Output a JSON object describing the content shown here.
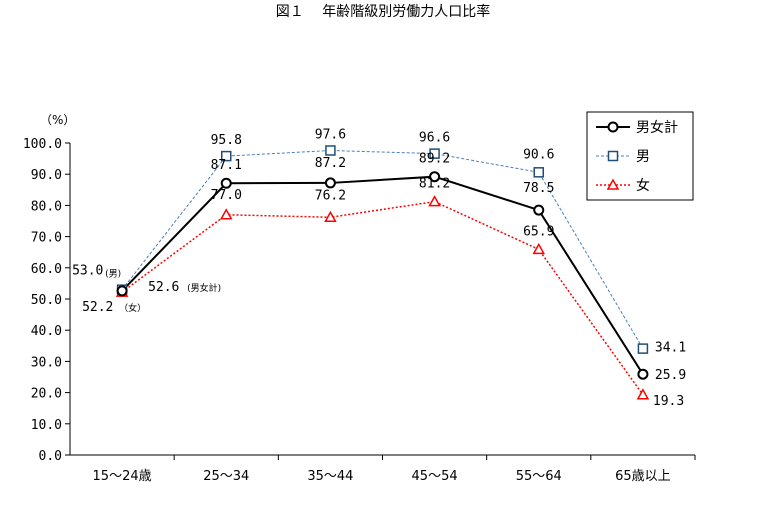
{
  "chart_data": {
    "type": "line",
    "title": "図１　 年齢階級別労働力人口比率",
    "unit_label": "（%）",
    "categories": [
      "15～24歳",
      "25～34",
      "35～44",
      "45～54",
      "55～64",
      "65歳以上"
    ],
    "ylim": [
      0,
      100
    ],
    "yticks": [
      "0.0",
      "10.0",
      "20.0",
      "30.0",
      "40.0",
      "50.0",
      "60.0",
      "70.0",
      "80.0",
      "90.0",
      "100.0"
    ],
    "grid": false,
    "legend_position": "top-right",
    "series": [
      {
        "name": "男女計",
        "values": [
          52.6,
          87.1,
          87.2,
          89.2,
          78.5,
          25.9
        ],
        "labels": [
          "52.6",
          "87.1",
          "87.2",
          "89.2",
          "78.5",
          "25.9"
        ],
        "color": "#000000",
        "marker": "circle",
        "line_style": "solid"
      },
      {
        "name": "男",
        "values": [
          53.0,
          95.8,
          97.6,
          96.6,
          90.6,
          34.1
        ],
        "labels": [
          "53.0",
          "95.8",
          "97.6",
          "96.6",
          "90.6",
          "34.1"
        ],
        "color": "#1f4e79",
        "accent": "#4a7ebb",
        "marker": "square",
        "line_style": "dashed"
      },
      {
        "name": "女",
        "values": [
          52.2,
          77.0,
          76.2,
          81.2,
          65.9,
          19.3
        ],
        "labels": [
          "52.2",
          "77.0",
          "76.2",
          "81.2",
          "65.9",
          "19.3"
        ],
        "color": "#ff0000",
        "marker": "triangle",
        "line_style": "dotted"
      }
    ],
    "annotations": {
      "first_point_notes": [
        "(男)",
        "(男女計)",
        "（女）"
      ]
    }
  }
}
